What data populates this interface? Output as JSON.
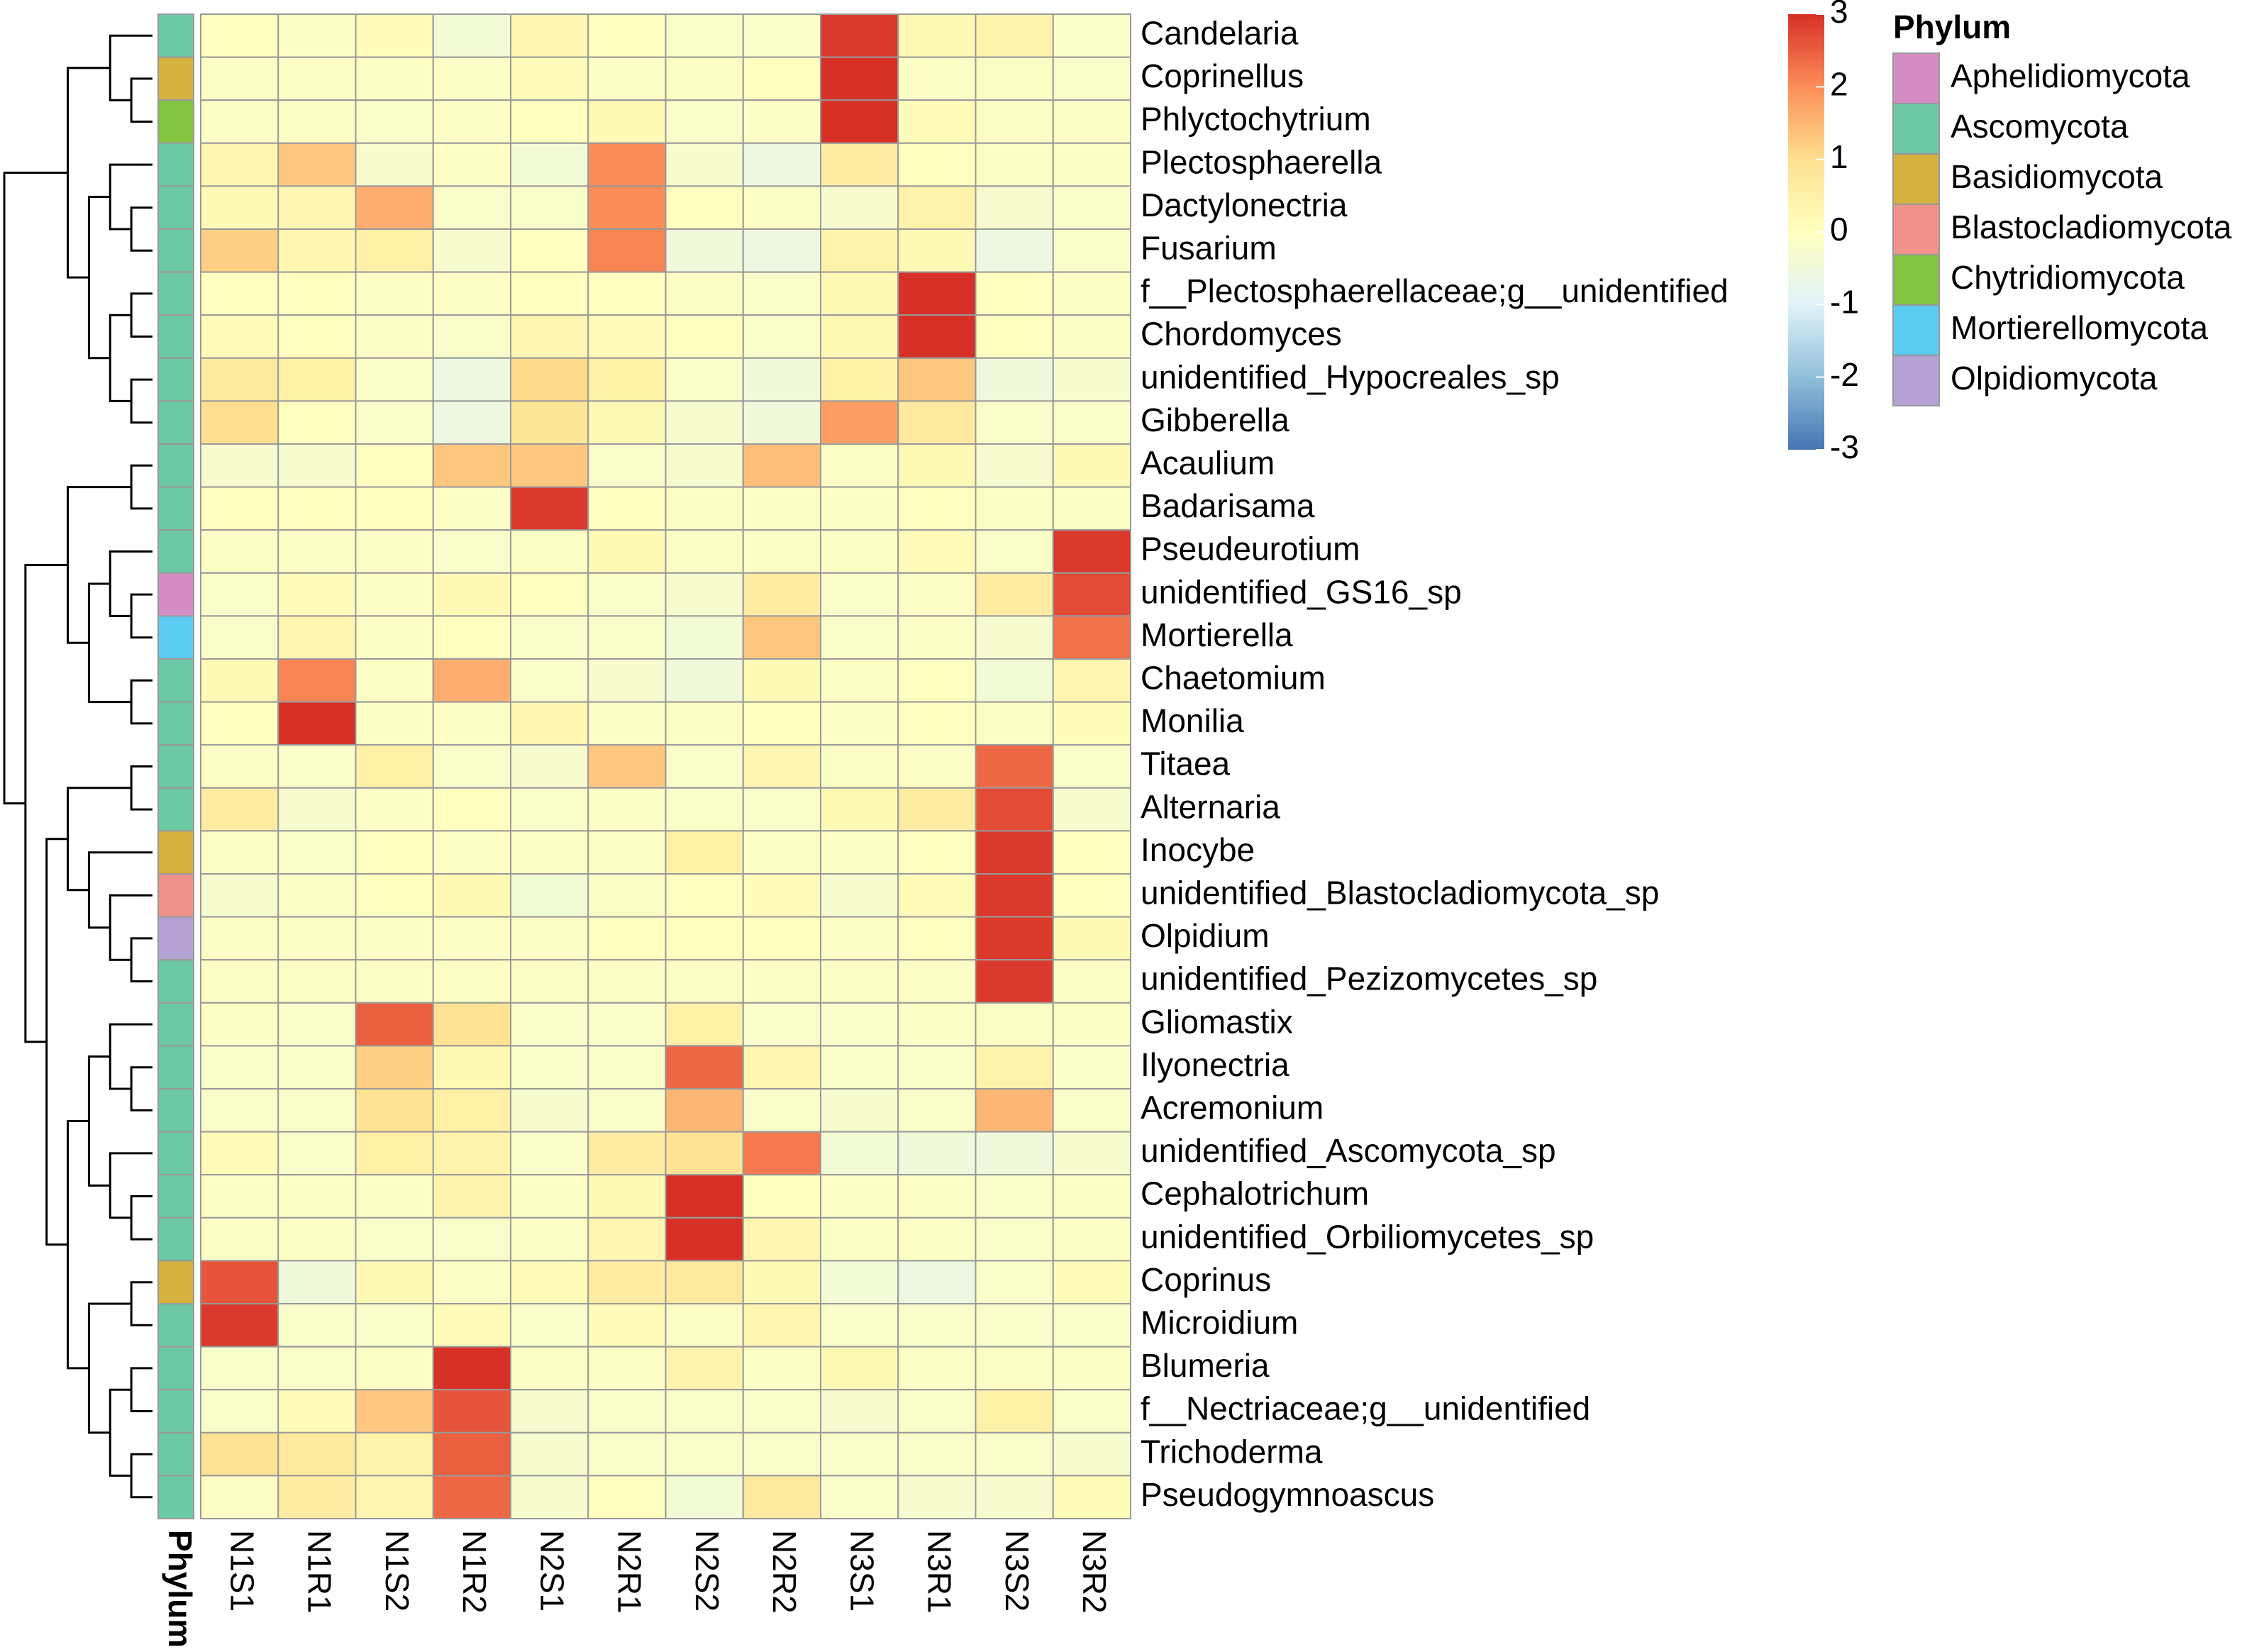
{
  "chart_data": {
    "type": "heatmap",
    "columns": [
      "N1S1",
      "N1R1",
      "N1S2",
      "N1R2",
      "N2S1",
      "N2R1",
      "N2S2",
      "N2R2",
      "N3S1",
      "N3R1",
      "N3S2",
      "N3R2"
    ],
    "rows": [
      "Candelaria",
      "Coprinellus",
      "Phlyctochytrium",
      "Plectosphaerella",
      "Dactylonectria",
      "Fusarium",
      "f__Plectosphaerellaceae;g__unidentified",
      "Chordomyces",
      "unidentified_Hypocreales_sp",
      "Gibberella",
      "Acaulium",
      "Badarisama",
      "Pseudeurotium",
      "unidentified_GS16_sp",
      "Mortierella",
      "Chaetomium",
      "Monilia",
      "Titaea",
      "Alternaria",
      "Inocybe",
      "unidentified_Blastocladiomycota_sp",
      "Olpidium",
      "unidentified_Pezizomycetes_sp",
      "Gliomastix",
      "Ilyonectria",
      "Acremonium",
      "unidentified_Ascomycota_sp",
      "Cephalotrichum",
      "unidentified_Orbiliomycetes_sp",
      "Coprinus",
      "Microidium",
      "Blumeria",
      "f__Nectriaceae;g__unidentified",
      "Trichoderma",
      "Pseudogymnoascus"
    ],
    "values": [
      [
        0,
        -0.1,
        0.1,
        -0.4,
        0.3,
        0,
        -0.2,
        -0.2,
        2.9,
        0.2,
        0.4,
        -0.2
      ],
      [
        -0.1,
        -0.1,
        -0.1,
        -0.1,
        0.1,
        -0.1,
        -0.1,
        0,
        3,
        -0.1,
        -0.1,
        -0.2
      ],
      [
        -0.1,
        -0.1,
        -0.2,
        -0.1,
        0,
        0.2,
        -0.2,
        -0.1,
        3,
        0.1,
        -0.1,
        -0.1
      ],
      [
        0.3,
        1.3,
        -0.3,
        -0.1,
        -0.4,
        2,
        -0.3,
        -0.6,
        0.6,
        0,
        -0.1,
        -0.1
      ],
      [
        0.2,
        0.3,
        1.6,
        -0.2,
        -0.2,
        2,
        0,
        -0.1,
        -0.3,
        0.4,
        -0.3,
        -0.2
      ],
      [
        1.2,
        0.3,
        0.5,
        -0.3,
        0,
        2.1,
        -0.5,
        -0.6,
        0.4,
        0.2,
        -0.6,
        -0.2
      ],
      [
        0,
        0,
        -0.1,
        -0.1,
        0,
        0,
        -0.1,
        -0.2,
        0.2,
        3,
        0,
        -0.1
      ],
      [
        0.1,
        0,
        -0.1,
        -0.2,
        0.3,
        0.1,
        0,
        -0.2,
        0.2,
        3,
        0,
        -0.1
      ],
      [
        0.7,
        0.5,
        -0.2,
        -0.6,
        1.1,
        0.5,
        -0.2,
        -0.5,
        0.5,
        1.3,
        -0.5,
        -0.3
      ],
      [
        1,
        0,
        -0.2,
        -0.6,
        0.8,
        0.2,
        -0.3,
        -0.5,
        1.8,
        0.7,
        -0.2,
        -0.2
      ],
      [
        -0.3,
        -0.3,
        0,
        1.3,
        1.3,
        -0.2,
        -0.3,
        1.4,
        -0.1,
        0.2,
        -0.3,
        0.2
      ],
      [
        0,
        0,
        0,
        -0.1,
        2.9,
        0,
        -0.1,
        -0.1,
        -0.1,
        0,
        -0.1,
        -0.1
      ],
      [
        -0.1,
        -0.1,
        -0.1,
        -0.2,
        -0.1,
        0.2,
        -0.1,
        -0.1,
        -0.1,
        0.1,
        -0.2,
        2.9
      ],
      [
        -0.2,
        0.1,
        -0.1,
        0.2,
        0,
        -0.2,
        -0.3,
        0.6,
        -0.2,
        -0.1,
        0.6,
        2.7
      ],
      [
        -0.2,
        0.3,
        -0.1,
        0,
        -0.2,
        -0.2,
        -0.4,
        1.3,
        -0.2,
        -0.1,
        -0.3,
        2.3
      ],
      [
        0.2,
        2.1,
        -0.1,
        1.6,
        -0.2,
        -0.3,
        -0.5,
        0.2,
        -0.1,
        0,
        -0.4,
        0.3
      ],
      [
        0,
        3,
        -0.1,
        -0.1,
        0.3,
        -0.1,
        -0.1,
        0,
        -0.1,
        0,
        -0.1,
        0.1
      ],
      [
        -0.1,
        -0.2,
        0.5,
        -0.2,
        -0.3,
        1.3,
        -0.2,
        0.3,
        -0.1,
        -0.1,
        2.4,
        -0.2
      ],
      [
        0.6,
        -0.3,
        -0.1,
        0,
        -0.2,
        -0.1,
        -0.2,
        -0.2,
        0.2,
        0.6,
        2.7,
        -0.3
      ],
      [
        -0.1,
        -0.2,
        0,
        -0.1,
        -0.1,
        -0.1,
        0.5,
        -0.1,
        -0.1,
        0,
        2.9,
        0
      ],
      [
        -0.3,
        -0.1,
        0,
        0.2,
        -0.4,
        -0.1,
        0,
        0.1,
        -0.3,
        0.1,
        2.9,
        0
      ],
      [
        -0.1,
        -0.1,
        -0.1,
        -0.1,
        -0.1,
        0,
        0,
        0,
        -0.1,
        0,
        2.9,
        0.2
      ],
      [
        -0.1,
        -0.1,
        -0.1,
        -0.1,
        -0.1,
        -0.1,
        -0.1,
        -0.1,
        -0.1,
        -0.1,
        2.9,
        -0.1
      ],
      [
        -0.1,
        -0.2,
        2.5,
        0.9,
        -0.2,
        -0.2,
        0.5,
        -0.2,
        -0.2,
        -0.1,
        -0.1,
        -0.1
      ],
      [
        -0.2,
        -0.2,
        1.2,
        0.2,
        -0.2,
        -0.2,
        2.4,
        0.3,
        -0.2,
        -0.2,
        0.4,
        -0.2
      ],
      [
        -0.2,
        -0.2,
        0.9,
        0.5,
        -0.3,
        -0.2,
        1.5,
        -0.2,
        -0.3,
        -0.2,
        1.5,
        -0.2
      ],
      [
        0.1,
        -0.2,
        0.5,
        0.4,
        -0.2,
        0.6,
        0.9,
        2.2,
        -0.4,
        -0.5,
        -0.5,
        -0.3
      ],
      [
        -0.1,
        -0.1,
        -0.1,
        0.4,
        -0.1,
        0.2,
        3,
        0,
        -0.1,
        -0.1,
        -0.2,
        -0.1
      ],
      [
        -0.1,
        -0.1,
        -0.2,
        -0.2,
        -0.1,
        0.3,
        3,
        0.3,
        -0.1,
        -0.1,
        -0.2,
        -0.1
      ],
      [
        2.6,
        -0.5,
        0.2,
        -0.1,
        0.1,
        0.6,
        0.7,
        0.2,
        -0.4,
        -0.6,
        -0.2,
        0.1
      ],
      [
        2.9,
        -0.2,
        -0.2,
        0.1,
        -0.2,
        0.1,
        -0.1,
        0.3,
        -0.2,
        -0.2,
        -0.2,
        -0.2
      ],
      [
        -0.2,
        -0.2,
        -0.1,
        3,
        -0.1,
        -0.1,
        0.4,
        -0.1,
        0.2,
        -0.1,
        -0.1,
        -0.1
      ],
      [
        -0.2,
        0.1,
        1.3,
        2.6,
        -0.3,
        -0.2,
        -0.2,
        -0.2,
        -0.3,
        -0.2,
        0.5,
        -0.2
      ],
      [
        0.9,
        0.7,
        0.4,
        2.5,
        -0.3,
        -0.2,
        -0.2,
        -0.2,
        -0.2,
        -0.2,
        -0.2,
        -0.3
      ],
      [
        -0.1,
        0.6,
        0.3,
        2.4,
        -0.3,
        0,
        -0.4,
        0.7,
        -0.2,
        -0.3,
        -0.3,
        0.1
      ]
    ],
    "colorbar": {
      "lim": [
        -3,
        3
      ],
      "ticks": [
        3,
        2,
        1,
        0,
        -1,
        -2,
        -3
      ],
      "colors": [
        "#4575b4",
        "#91bfdb",
        "#e0f3f8",
        "#ffffbf",
        "#fee090",
        "#fc8d59",
        "#d73027"
      ]
    },
    "annotation": {
      "title": "Phylum",
      "groups": [
        {
          "name": "Aphelidiomycota",
          "color": "#d48dc4"
        },
        {
          "name": "Ascomycota",
          "color": "#6dc9a5"
        },
        {
          "name": "Basidiomycota",
          "color": "#d5b13e"
        },
        {
          "name": "Blastocladiomycota",
          "color": "#ef928a"
        },
        {
          "name": "Chytridiomycota",
          "color": "#82c341"
        },
        {
          "name": "Mortierellomycota",
          "color": "#5bcbf2"
        },
        {
          "name": "Olpidiomycota",
          "color": "#b4a2d3"
        }
      ],
      "values": [
        "Ascomycota",
        "Basidiomycota",
        "Chytridiomycota",
        "Ascomycota",
        "Ascomycota",
        "Ascomycota",
        "Ascomycota",
        "Ascomycota",
        "Ascomycota",
        "Ascomycota",
        "Ascomycota",
        "Ascomycota",
        "Ascomycota",
        "Aphelidiomycota",
        "Mortierellomycota",
        "Ascomycota",
        "Ascomycota",
        "Ascomycota",
        "Ascomycota",
        "Basidiomycota",
        "Blastocladiomycota",
        "Olpidiomycota",
        "Ascomycota",
        "Ascomycota",
        "Ascomycota",
        "Ascomycota",
        "Ascomycota",
        "Ascomycota",
        "Ascomycota",
        "Basidiomycota",
        "Ascomycota",
        "Ascomycota",
        "Ascomycota",
        "Ascomycota",
        "Ascomycota"
      ]
    }
  }
}
